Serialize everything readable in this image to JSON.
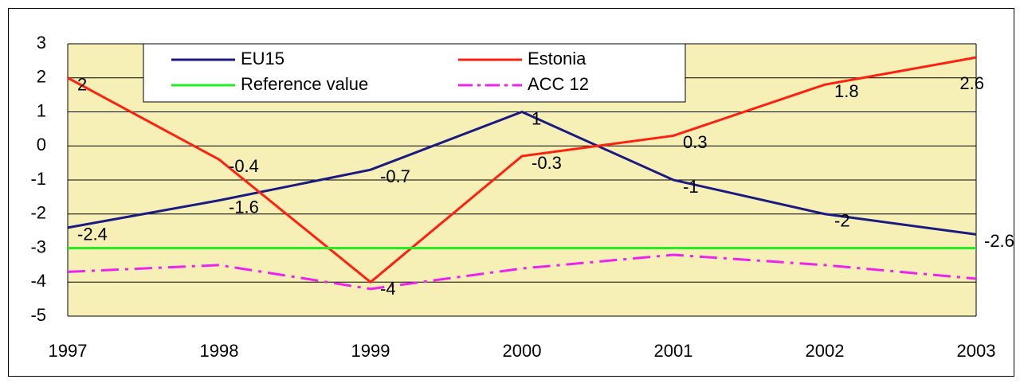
{
  "chart_data": {
    "type": "line",
    "categories": [
      "1997",
      "1998",
      "1999",
      "2000",
      "2001",
      "2002",
      "2003"
    ],
    "series": [
      {
        "name": "EU15",
        "color": "#1a1a80",
        "values": [
          -2.4,
          -1.6,
          -0.7,
          1,
          -1,
          -2,
          -2.6
        ],
        "data_labels": true
      },
      {
        "name": "Estonia",
        "color": "#ff2010",
        "values": [
          2,
          -0.4,
          -4,
          -0.3,
          0.3,
          1.8,
          2.6
        ],
        "data_labels": true
      },
      {
        "name": "Reference value",
        "color": "#22ee22",
        "values": [
          -3,
          -3,
          -3,
          -3,
          -3,
          -3,
          -3
        ],
        "data_labels": false
      },
      {
        "name": "ACC 12",
        "color": "#ee22ee",
        "values": [
          -3.7,
          -3.5,
          -4.2,
          -3.6,
          -3.2,
          -3.5,
          -3.9
        ],
        "data_labels": false,
        "dash": "22 8 4 8"
      }
    ],
    "ylim": [
      -5,
      3
    ],
    "yticks": [
      -5,
      -4,
      -3,
      -2,
      -1,
      0,
      1,
      2,
      3
    ],
    "grid": true
  }
}
